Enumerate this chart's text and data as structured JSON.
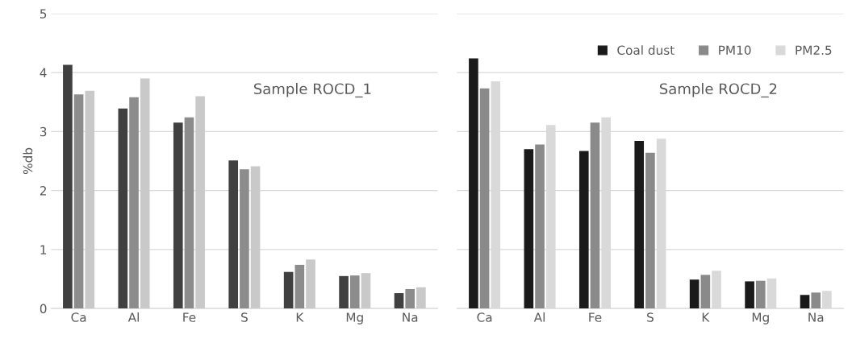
{
  "chart_data": [
    {
      "type": "bar",
      "ylabel": "%db",
      "categories": [
        "Ca",
        "Al",
        "Fe",
        "S",
        "K",
        "Mg",
        "Na"
      ],
      "ylim": [
        0,
        5
      ],
      "yticks": [
        0,
        1,
        2,
        3,
        4,
        5
      ],
      "grid": "y",
      "legend": false,
      "annotations": [
        "Sample ROCD_1"
      ],
      "series": [
        {
          "color": "#404040",
          "values": [
            4.13,
            3.39,
            3.15,
            2.51,
            0.62,
            0.55,
            0.26
          ]
        },
        {
          "color": "#8c8c8c",
          "values": [
            3.63,
            3.58,
            3.24,
            2.36,
            0.74,
            0.56,
            0.33
          ]
        },
        {
          "color": "#c9c9c9",
          "values": [
            3.69,
            3.9,
            3.6,
            2.41,
            0.83,
            0.6,
            0.36
          ]
        }
      ]
    },
    {
      "type": "bar",
      "categories": [
        "Ca",
        "Al",
        "Fe",
        "S",
        "K",
        "Mg",
        "Na"
      ],
      "ylim": [
        0,
        5
      ],
      "yticks": [
        0,
        1,
        2,
        3,
        4,
        5
      ],
      "grid": "y",
      "legend": "top right",
      "tick_labels": "x",
      "annotations": [
        "Sample ROCD_2"
      ],
      "series": [
        {
          "name": "Coal dust",
          "color": "#1a1a1a",
          "values": [
            4.24,
            2.7,
            2.67,
            2.84,
            0.49,
            0.46,
            0.23
          ]
        },
        {
          "name": "PM10",
          "color": "#8a8a8a",
          "values": [
            3.73,
            2.78,
            3.15,
            2.64,
            0.57,
            0.47,
            0.27
          ]
        },
        {
          "name": "PM2.5",
          "color": "#d9d9d9",
          "values": [
            3.85,
            3.11,
            3.24,
            2.88,
            0.64,
            0.51,
            0.3
          ]
        }
      ]
    }
  ]
}
